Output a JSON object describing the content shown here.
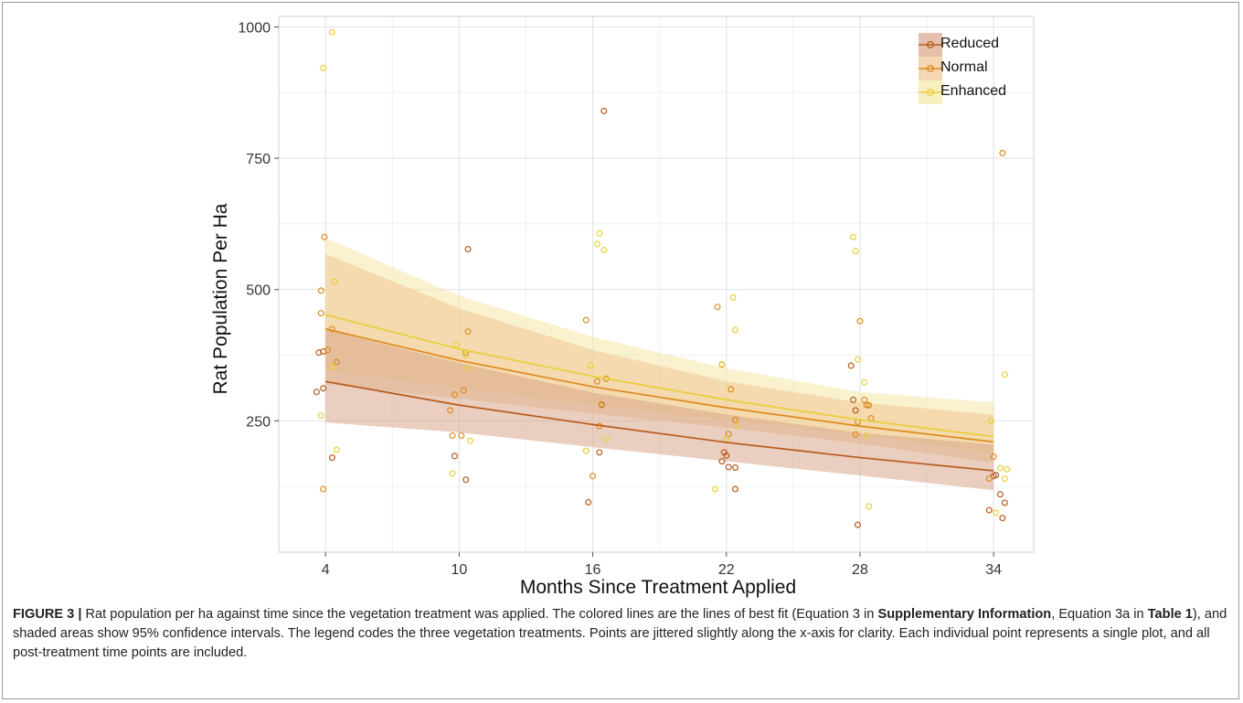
{
  "chart_data": {
    "type": "scatter",
    "xlabel": "Months Since Treatment Applied",
    "ylabel": "Rat Population Per Ha",
    "x_ticks": [
      4,
      10,
      16,
      22,
      28,
      34
    ],
    "y_ticks": [
      250,
      500,
      750,
      1000
    ],
    "xlim": [
      1.9,
      35.8
    ],
    "ylim": [
      0,
      1020
    ],
    "grid": true,
    "legend_position": "top-right",
    "series": [
      {
        "name": "Reduced",
        "color": "#b85a1c",
        "fill": "#d8a58a",
        "fit_x": [
          4,
          10,
          16,
          22,
          28,
          34
        ],
        "fit_y": [
          325,
          280,
          243,
          209,
          180,
          155
        ],
        "ci_lower": [
          247,
          228,
          200,
          173,
          146,
          118
        ],
        "ci_upper": [
          424,
          360,
          304,
          262,
          227,
          205
        ],
        "points": [
          [
            3.6,
            305
          ],
          [
            3.7,
            380
          ],
          [
            3.9,
            312
          ],
          [
            3.9,
            382
          ],
          [
            4.3,
            180
          ],
          [
            9.8,
            183
          ],
          [
            10.3,
            138
          ],
          [
            10.4,
            577
          ],
          [
            15.8,
            95
          ],
          [
            16.3,
            190
          ],
          [
            16.4,
            281
          ],
          [
            16.5,
            840
          ],
          [
            21.8,
            173
          ],
          [
            21.9,
            190
          ],
          [
            22.0,
            184
          ],
          [
            22.1,
            162
          ],
          [
            22.4,
            161
          ],
          [
            22.4,
            120
          ],
          [
            27.6,
            355
          ],
          [
            27.7,
            290
          ],
          [
            27.8,
            270
          ],
          [
            27.9,
            52
          ],
          [
            33.8,
            80
          ],
          [
            34.0,
            145
          ],
          [
            34.1,
            147
          ],
          [
            34.3,
            110
          ],
          [
            34.4,
            65
          ],
          [
            34.5,
            94
          ]
        ]
      },
      {
        "name": "Normal",
        "color": "#de8a1f",
        "fill": "#eec793",
        "fit_x": [
          4,
          10,
          16,
          22,
          28,
          34
        ],
        "fit_y": [
          425,
          365,
          315,
          275,
          240,
          210
        ],
        "ci_lower": [
          320,
          292,
          264,
          237,
          207,
          170
        ],
        "ci_upper": [
          568,
          464,
          385,
          325,
          285,
          262
        ],
        "points": [
          [
            3.8,
            455
          ],
          [
            3.8,
            498
          ],
          [
            3.9,
            120
          ],
          [
            3.95,
            600
          ],
          [
            4.1,
            385
          ],
          [
            4.3,
            425
          ],
          [
            4.5,
            362
          ],
          [
            9.6,
            270
          ],
          [
            9.7,
            222
          ],
          [
            9.8,
            300
          ],
          [
            10.1,
            222
          ],
          [
            10.2,
            308
          ],
          [
            10.3,
            380
          ],
          [
            10.4,
            420
          ],
          [
            15.7,
            442
          ],
          [
            16.0,
            145
          ],
          [
            16.2,
            325
          ],
          [
            16.3,
            240
          ],
          [
            16.4,
            280
          ],
          [
            16.6,
            330
          ],
          [
            21.6,
            467
          ],
          [
            21.8,
            357
          ],
          [
            22.1,
            225
          ],
          [
            22.2,
            310
          ],
          [
            22.4,
            252
          ],
          [
            27.8,
            224
          ],
          [
            27.9,
            248
          ],
          [
            28.0,
            440
          ],
          [
            28.2,
            290
          ],
          [
            28.3,
            280
          ],
          [
            28.4,
            280
          ],
          [
            28.5,
            255
          ],
          [
            33.8,
            140
          ],
          [
            34.0,
            182
          ],
          [
            34.4,
            760
          ]
        ]
      },
      {
        "name": "Enhanced",
        "color": "#e8cf3a",
        "fill": "#f5e8a6",
        "fit_x": [
          4,
          10,
          16,
          22,
          28,
          34
        ],
        "fit_y": [
          452,
          387,
          335,
          290,
          252,
          220
        ],
        "ci_lower": [
          345,
          312,
          280,
          252,
          223,
          188
        ],
        "ci_upper": [
          598,
          488,
          410,
          350,
          305,
          285
        ],
        "points": [
          [
            3.8,
            260
          ],
          [
            3.9,
            922
          ],
          [
            4.3,
            990
          ],
          [
            4.3,
            353
          ],
          [
            4.4,
            515
          ],
          [
            4.5,
            195
          ],
          [
            9.7,
            150
          ],
          [
            9.9,
            395
          ],
          [
            10.3,
            375
          ],
          [
            10.4,
            350
          ],
          [
            10.5,
            212
          ],
          [
            15.7,
            193
          ],
          [
            15.9,
            355
          ],
          [
            16.2,
            587
          ],
          [
            16.3,
            607
          ],
          [
            16.5,
            575
          ],
          [
            16.6,
            215
          ],
          [
            21.5,
            120
          ],
          [
            21.8,
            358
          ],
          [
            22.0,
            215
          ],
          [
            22.3,
            485
          ],
          [
            22.4,
            423
          ],
          [
            22.5,
            240
          ],
          [
            27.7,
            600
          ],
          [
            27.8,
            573
          ],
          [
            27.9,
            367
          ],
          [
            28.2,
            323
          ],
          [
            28.3,
            222
          ],
          [
            28.4,
            87
          ],
          [
            33.9,
            250
          ],
          [
            34.1,
            75
          ],
          [
            34.3,
            160
          ],
          [
            34.5,
            338
          ],
          [
            34.5,
            140
          ],
          [
            34.6,
            158
          ]
        ]
      }
    ]
  },
  "caption": {
    "label": "FIGURE 3 |",
    "t1": " Rat population per ha against time since the vegetation treatment was applied. The colored lines are the lines of best fit (Equation 3 in ",
    "b1": "Supplementary Information",
    "t2": ", Equation 3a in ",
    "b2": "Table 1",
    "t3": "), and shaded areas show 95% confidence intervals. The legend codes the three vegetation treatments. Points are jittered slightly along the x-axis for clarity. Each individual point represents a single plot, and all post-treatment time points are included."
  }
}
